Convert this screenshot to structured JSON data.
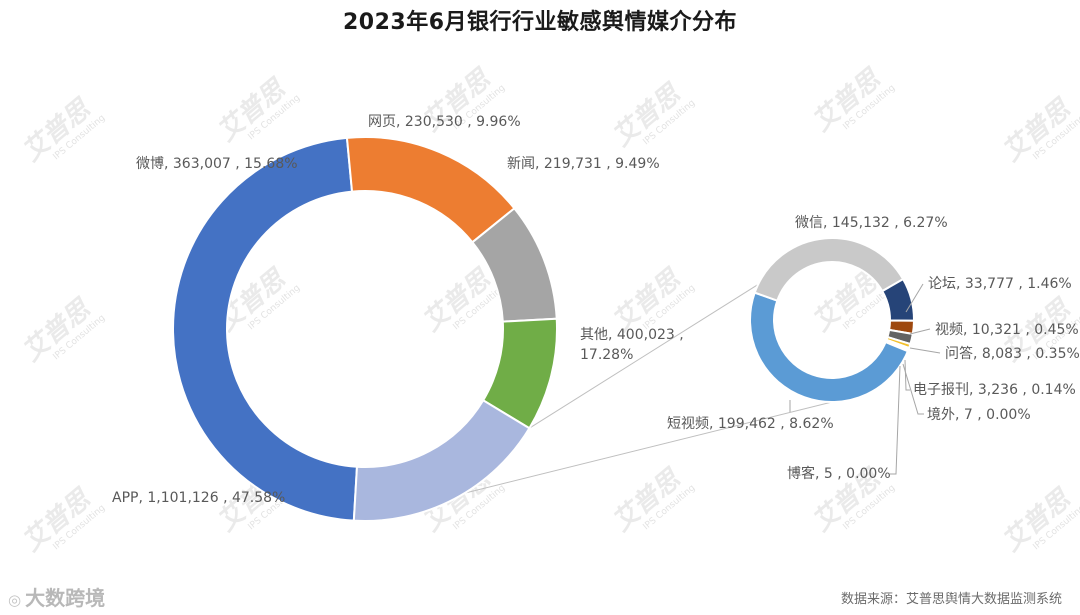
{
  "title": "2023年6月银行行业敏感舆情媒介分布",
  "source": "数据来源：艾普思舆情大数据监测系统",
  "logo_text": "大数跨境",
  "watermark": "艾普思",
  "watermark_sub": "IPS Consulting",
  "chart_data": [
    {
      "type": "pie",
      "variant": "donut",
      "slices": [
        {
          "name": "APP",
          "value": 1101126,
          "percent": "47.58%",
          "color": "#4472C4"
        },
        {
          "name": "微博",
          "value": 363007,
          "percent": "15.68%",
          "color": "#ED7D31"
        },
        {
          "name": "网页",
          "value": 230530,
          "percent": "9.96%",
          "color": "#A5A5A5"
        },
        {
          "name": "新闻",
          "value": 219731,
          "percent": "9.49%",
          "color": "#70AD47"
        },
        {
          "name": "其他",
          "value": 400023,
          "percent": "17.28%",
          "color": "#A9B7DE"
        }
      ]
    },
    {
      "type": "pie",
      "variant": "donut",
      "breakdown_of": "其他",
      "slices": [
        {
          "name": "短视频",
          "value": 199462,
          "percent": "8.62%",
          "color": "#5B9BD5"
        },
        {
          "name": "微信",
          "value": 145132,
          "percent": "6.27%",
          "color": "#C9C9C9"
        },
        {
          "name": "论坛",
          "value": 33777,
          "percent": "1.46%",
          "color": "#264478"
        },
        {
          "name": "视频",
          "value": 10321,
          "percent": "0.45%",
          "color": "#9E480E"
        },
        {
          "name": "问答",
          "value": 8083,
          "percent": "0.35%",
          "color": "#636363"
        },
        {
          "name": "电子报刊",
          "value": 3236,
          "percent": "0.14%",
          "color": "#F2C02E"
        },
        {
          "name": "境外",
          "value": 7,
          "percent": "0.00%",
          "color": "#4472C4"
        },
        {
          "name": "博客",
          "value": 5,
          "percent": "0.00%",
          "color": "#70AD47"
        }
      ]
    }
  ]
}
